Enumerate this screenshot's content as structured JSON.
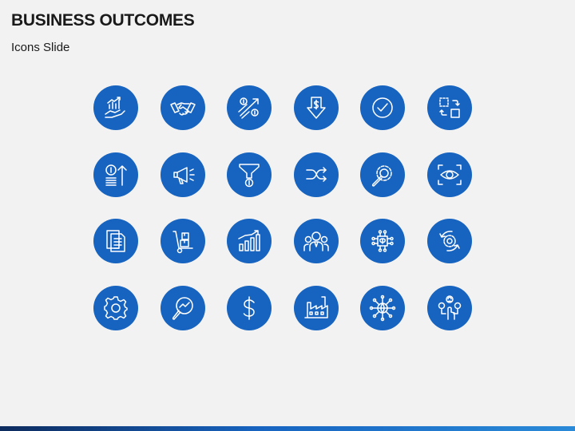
{
  "slide": {
    "title": "BUSINESS OUTCOMES",
    "subtitle": "Icons Slide"
  },
  "colors": {
    "background": "#f2f2f2",
    "icon_circle": "#1764c0",
    "icon_stroke": "#ffffff",
    "footer_bar": "#1764c0"
  },
  "icons": [
    "growth-hand-icon",
    "handshake-icon",
    "dollar-growth-arrows-icon",
    "download-dollar-icon",
    "check-circle-icon",
    "transform-squares-icon",
    "dollar-coins-up-icon",
    "megaphone-icon",
    "funnel-dollar-icon",
    "shuffle-icon",
    "wrench-gear-icon",
    "eye-focus-icon",
    "documents-icon",
    "hand-truck-boxes-icon",
    "bar-chart-growth-icon",
    "team-icon",
    "brain-chip-icon",
    "gear-cycle-icon",
    "gear-icon",
    "magnifier-analytics-icon",
    "dollar-sign-icon",
    "factory-icon",
    "global-network-icon",
    "hand-touch-people-icon"
  ]
}
